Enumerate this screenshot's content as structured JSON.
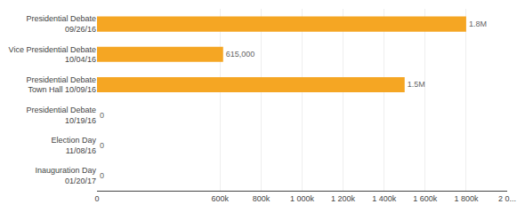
{
  "chart_data": {
    "type": "bar",
    "orientation": "horizontal",
    "categories": [
      "Presidential Debate\n09/26/16",
      "Vice Presidential Debate\n10/04/16",
      "Presidential Debate\nTown Hall 10/09/16",
      "Presidential Debate\n10/19/16",
      "Election Day\n11/08/16",
      "Inauguration Day\n01/20/17"
    ],
    "values": [
      1800000,
      615000,
      1500000,
      0,
      0,
      0
    ],
    "value_labels": [
      "1.8M",
      "615,000",
      "1.5M",
      "0",
      "0",
      "0"
    ],
    "data_labels": true,
    "color": "#f5a623",
    "xlim": [
      0,
      2000000
    ],
    "xticks": [
      0,
      {
        "value": 600000,
        "label": "600k"
      },
      {
        "value": 800000,
        "label": "800k"
      },
      {
        "value": 1000000,
        "label": "1 000k"
      },
      {
        "value": 1200000,
        "label": "1 200k"
      },
      {
        "value": 1400000,
        "label": "1 400k"
      },
      {
        "value": 1600000,
        "label": "1 600k"
      },
      {
        "value": 1800000,
        "label": "1 800k"
      },
      {
        "value": 2000000,
        "label": "2 0..."
      }
    ],
    "grid": true
  }
}
